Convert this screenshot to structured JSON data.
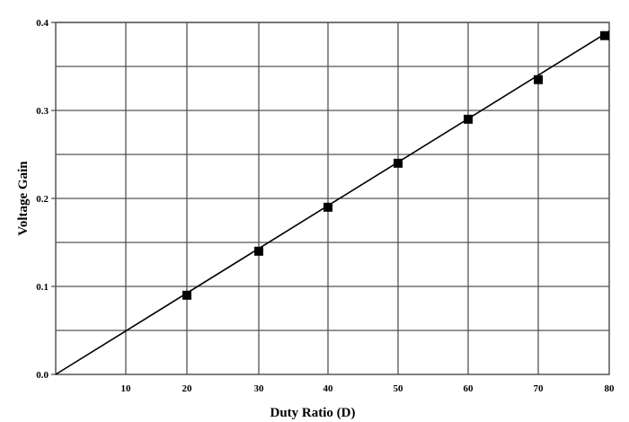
{
  "chart_data": {
    "type": "line",
    "title": "",
    "xlabel": "Duty Ratio (D)",
    "ylabel": "Voltage Gain",
    "x_ticks": [
      "10",
      "20",
      "30",
      "40",
      "50",
      "60",
      "70",
      "80"
    ],
    "y_ticks": [
      "0.0",
      "0.1",
      "0.2",
      "0.3",
      "0.4"
    ],
    "xlim": [
      0,
      80
    ],
    "ylim": [
      0.0,
      0.4
    ],
    "grid": true,
    "legend": null,
    "series": [
      {
        "name": "Voltage Gain",
        "marker": "square",
        "x": [
          20,
          30,
          40,
          50,
          60,
          70,
          80
        ],
        "values": [
          0.09,
          0.14,
          0.19,
          0.24,
          0.29,
          0.335,
          0.385
        ]
      }
    ],
    "trend_line": {
      "from": [
        0,
        0.0
      ],
      "to": [
        80,
        0.39
      ]
    }
  },
  "colors": {
    "grid": "#555555",
    "line": "#000000",
    "marker": "#000000"
  }
}
